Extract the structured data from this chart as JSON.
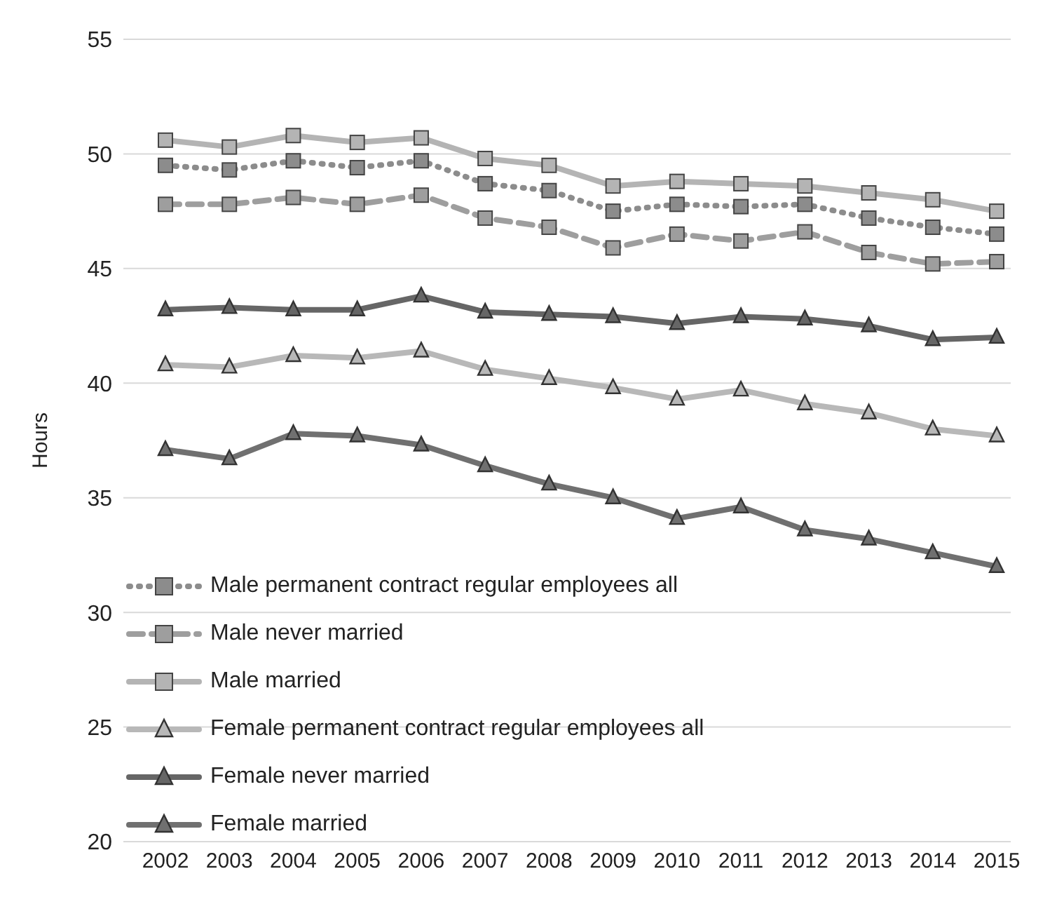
{
  "chart_data": {
    "type": "line",
    "ylabel": "Hours",
    "categories": [
      "2002",
      "2003",
      "2004",
      "2005",
      "2006",
      "2007",
      "2008",
      "2009",
      "2010",
      "2011",
      "2012",
      "2013",
      "2014",
      "2015"
    ],
    "ylim": [
      20,
      55
    ],
    "yticks": [
      20,
      25,
      30,
      35,
      40,
      45,
      50,
      55
    ],
    "grid": "y",
    "legend": "bottom left",
    "series": [
      {
        "name": "Male permanent contract regular employees all",
        "color": "#8c8c8c",
        "marker": "square",
        "line_style": "dotted",
        "values": [
          49.5,
          49.3,
          49.7,
          49.4,
          49.7,
          48.7,
          48.4,
          47.5,
          47.8,
          47.7,
          47.8,
          47.2,
          46.8,
          46.5
        ]
      },
      {
        "name": "Male never married",
        "color": "#9e9e9e",
        "marker": "square",
        "line_style": "dashed",
        "values": [
          47.8,
          47.8,
          48.1,
          47.8,
          48.2,
          47.2,
          46.8,
          45.9,
          46.5,
          46.2,
          46.6,
          45.7,
          45.2,
          45.3
        ]
      },
      {
        "name": "Male married",
        "color": "#b4b4b4",
        "marker": "square",
        "line_style": "solid",
        "values": [
          50.6,
          50.3,
          50.8,
          50.5,
          50.7,
          49.8,
          49.5,
          48.6,
          48.8,
          48.7,
          48.6,
          48.3,
          48.0,
          47.5
        ]
      },
      {
        "name": "Female permanent contract regular employees all",
        "color": "#b8b8b8",
        "marker": "triangle",
        "line_style": "solid",
        "values": [
          40.8,
          40.7,
          41.2,
          41.1,
          41.4,
          40.6,
          40.2,
          39.8,
          39.3,
          39.7,
          39.1,
          38.7,
          38.0,
          37.7
        ]
      },
      {
        "name": "Female never married",
        "color": "#666666",
        "marker": "triangle",
        "line_style": "solid",
        "values": [
          43.2,
          43.3,
          43.2,
          43.2,
          43.8,
          43.1,
          43.0,
          42.9,
          42.6,
          42.9,
          42.8,
          42.5,
          41.9,
          42.0
        ]
      },
      {
        "name": "Female married",
        "color": "#707070",
        "marker": "triangle",
        "line_style": "solid",
        "values": [
          37.1,
          36.7,
          37.8,
          37.7,
          37.3,
          36.4,
          35.6,
          35.0,
          34.1,
          34.6,
          33.6,
          33.2,
          32.6,
          32.0
        ]
      }
    ]
  }
}
